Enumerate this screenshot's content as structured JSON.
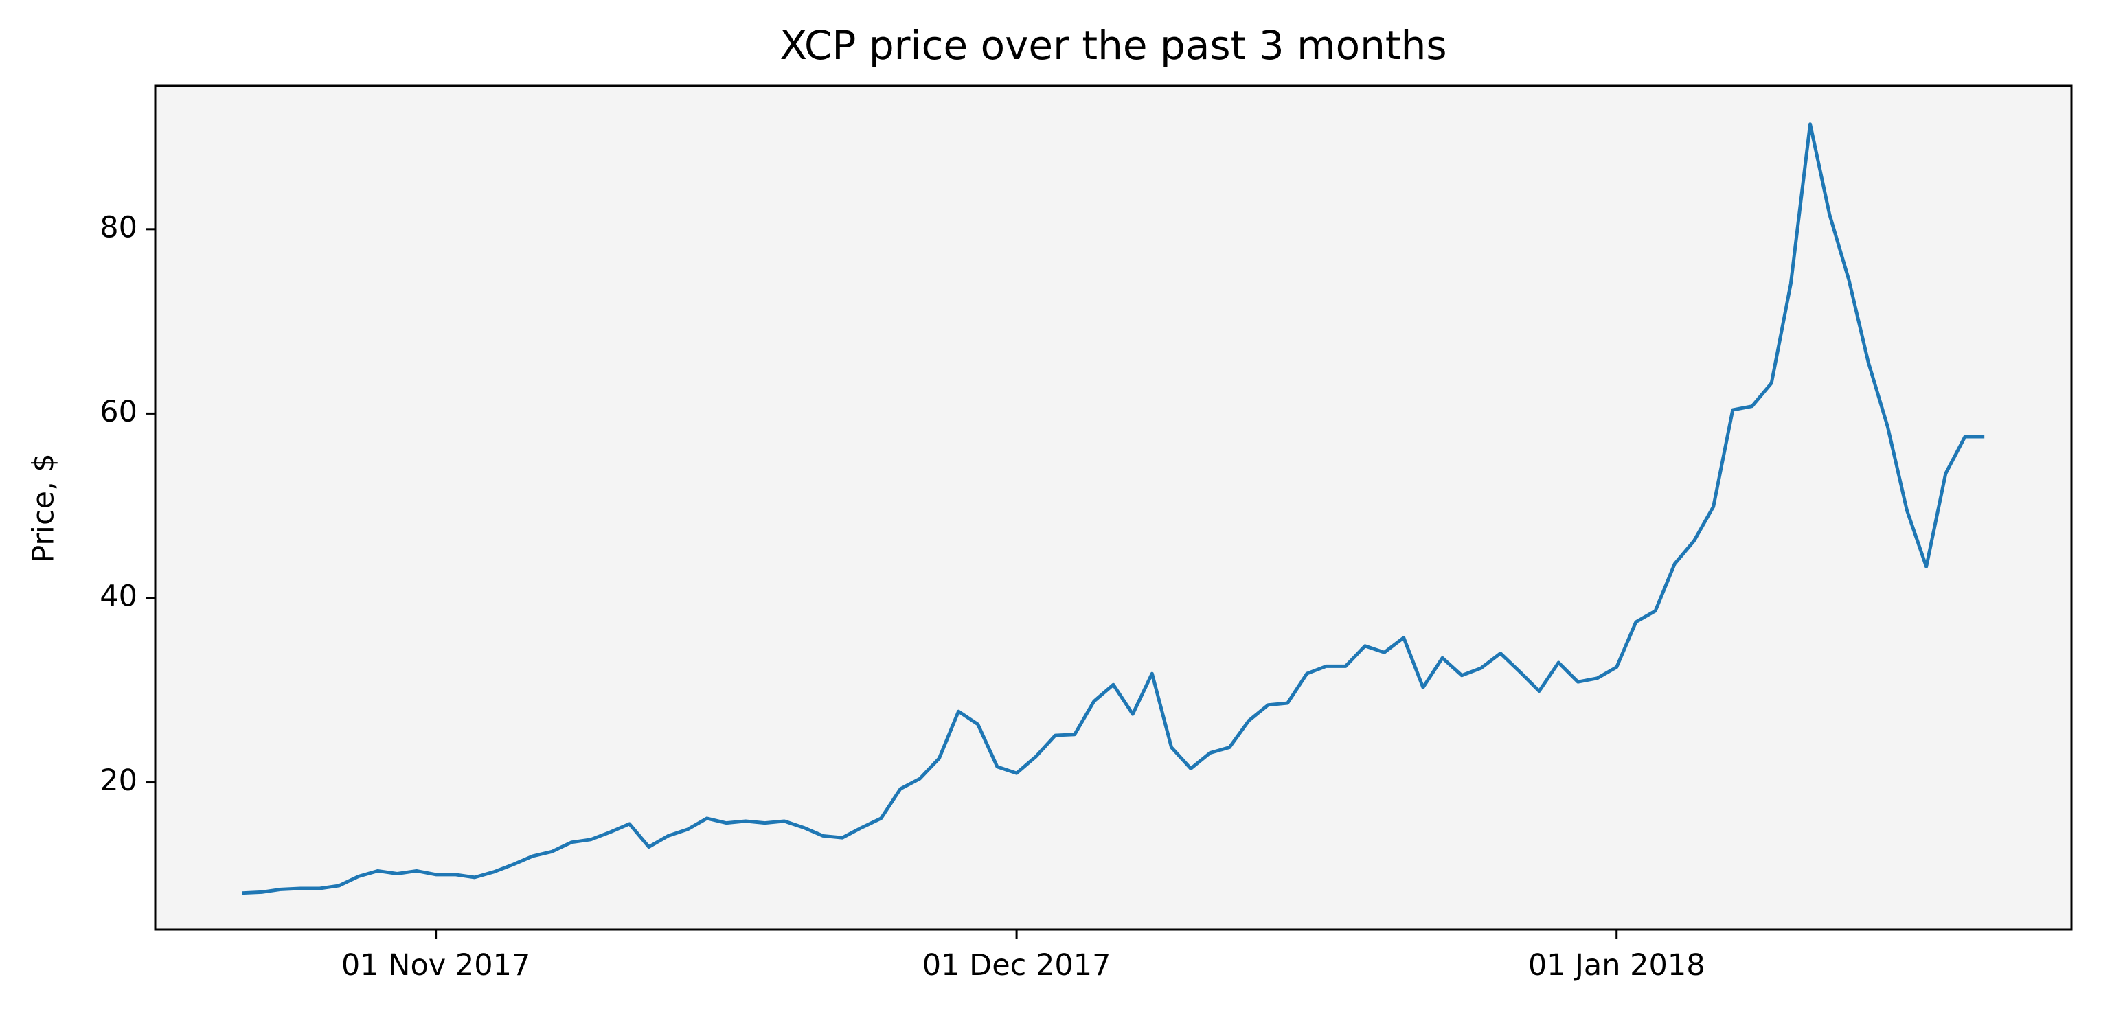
{
  "chart_data": {
    "type": "line",
    "title": "XCP price over the past 3 months",
    "y_label": "Price, $",
    "x": [
      "2017-10-22",
      "2017-10-23",
      "2017-10-24",
      "2017-10-25",
      "2017-10-26",
      "2017-10-27",
      "2017-10-28",
      "2017-10-29",
      "2017-10-30",
      "2017-10-31",
      "2017-11-01",
      "2017-11-02",
      "2017-11-03",
      "2017-11-04",
      "2017-11-05",
      "2017-11-06",
      "2017-11-07",
      "2017-11-08",
      "2017-11-09",
      "2017-11-10",
      "2017-11-11",
      "2017-11-12",
      "2017-11-13",
      "2017-11-14",
      "2017-11-15",
      "2017-11-16",
      "2017-11-17",
      "2017-11-18",
      "2017-11-19",
      "2017-11-20",
      "2017-11-21",
      "2017-11-22",
      "2017-11-23",
      "2017-11-24",
      "2017-11-25",
      "2017-11-26",
      "2017-11-27",
      "2017-11-28",
      "2017-11-29",
      "2017-11-30",
      "2017-12-01",
      "2017-12-02",
      "2017-12-03",
      "2017-12-04",
      "2017-12-05",
      "2017-12-06",
      "2017-12-07",
      "2017-12-08",
      "2017-12-09",
      "2017-12-10",
      "2017-12-11",
      "2017-12-12",
      "2017-12-13",
      "2017-12-14",
      "2017-12-15",
      "2017-12-16",
      "2017-12-17",
      "2017-12-18",
      "2017-12-19",
      "2017-12-20",
      "2017-12-21",
      "2017-12-22",
      "2017-12-23",
      "2017-12-24",
      "2017-12-25",
      "2017-12-26",
      "2017-12-27",
      "2017-12-28",
      "2017-12-29",
      "2017-12-30",
      "2017-12-31",
      "2018-01-01",
      "2018-01-02",
      "2018-01-03",
      "2018-01-04",
      "2018-01-05",
      "2018-01-06",
      "2018-01-07",
      "2018-01-08",
      "2018-01-09",
      "2018-01-10",
      "2018-01-11",
      "2018-01-12",
      "2018-01-13",
      "2018-01-14",
      "2018-01-15",
      "2018-01-16",
      "2018-01-17",
      "2018-01-18",
      "2018-01-19",
      "2018-01-20"
    ],
    "values": [
      8.0,
      8.1,
      8.4,
      8.5,
      8.5,
      8.8,
      9.8,
      10.4,
      10.1,
      10.4,
      10.0,
      10.0,
      9.7,
      10.3,
      11.1,
      12.0,
      12.5,
      13.5,
      13.8,
      14.6,
      15.5,
      13.0,
      14.2,
      14.9,
      16.1,
      15.6,
      15.8,
      15.6,
      15.8,
      15.1,
      14.2,
      14.0,
      15.1,
      16.1,
      19.3,
      20.4,
      22.6,
      27.7,
      26.3,
      21.7,
      21.0,
      22.8,
      25.1,
      25.2,
      28.8,
      30.6,
      27.4,
      31.8,
      23.8,
      21.5,
      23.2,
      23.8,
      26.7,
      28.4,
      28.6,
      31.8,
      32.6,
      32.6,
      34.8,
      34.1,
      35.7,
      30.3,
      33.5,
      31.6,
      32.4,
      34.0,
      32.0,
      29.9,
      33.0,
      30.9,
      31.3,
      32.5,
      37.4,
      38.6,
      43.7,
      46.2,
      49.9,
      60.4,
      60.8,
      63.3,
      74.1,
      91.4,
      81.6,
      74.5,
      65.6,
      58.6,
      49.5,
      43.4,
      53.5,
      57.5,
      57.5
    ],
    "color": "#1f77b4",
    "facecolor": "#f4f4f4",
    "xlim": [
      "2017-10-17T12:00:00Z",
      "2018-01-24T12:00:00Z"
    ],
    "xticks": [
      {
        "value": "2017-11-01",
        "label": "01 Nov 2017"
      },
      {
        "value": "2017-12-01",
        "label": "01 Dec 2017"
      },
      {
        "value": "2018-01-01",
        "label": "01 Jan 2018"
      }
    ],
    "ylim": [
      4.03,
      95.55
    ],
    "yticks": [
      20,
      40,
      60,
      80
    ],
    "grid": false
  }
}
